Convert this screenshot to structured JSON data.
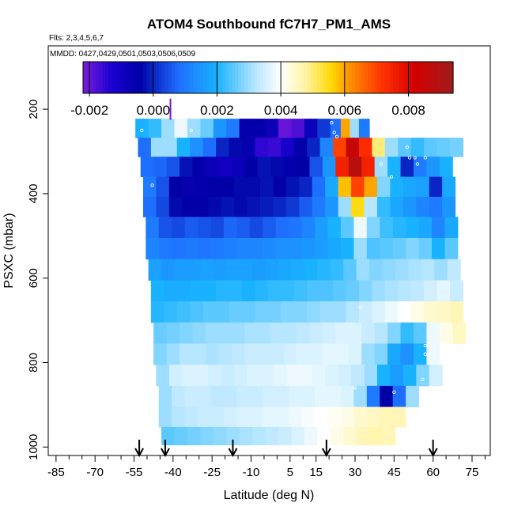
{
  "chart_data": {
    "type": "heatmap",
    "title": "ATOM4 Southbound fC7H7_PM1_AMS",
    "annotation_lines": [
      "Flts: 2,3,4,5,6,7",
      "MMDD: 0427,0429,0501,0503,0506,0509"
    ],
    "xlabel": "Latitude (deg N)",
    "ylabel": "PSXC (mbar)",
    "xlim": [
      -88,
      82
    ],
    "ylim": [
      1020,
      50
    ],
    "x_ticks": [
      -85,
      -70,
      -55,
      -40,
      -25,
      -10,
      5,
      15,
      30,
      45,
      60,
      75
    ],
    "x_tick_labels": [
      "-85",
      "-70",
      "-55",
      "-40",
      "-25",
      "-10",
      "5",
      "15",
      "30",
      "45",
      "60",
      "75"
    ],
    "x_minor_ticks": [
      -80,
      -75,
      -65,
      -60,
      -50,
      -45,
      -35,
      -30,
      -20,
      -15,
      -5,
      0,
      10,
      20,
      25,
      35,
      40,
      50,
      55,
      65,
      70,
      80
    ],
    "y_ticks": [
      200,
      400,
      600,
      800,
      1000
    ],
    "y_tick_labels": [
      "200",
      "400",
      "600",
      "800",
      "1000"
    ],
    "colorbar": {
      "range": [
        -0.0022,
        0.0094
      ],
      "ticks": [
        -0.002,
        0.0,
        0.002,
        0.004,
        0.006,
        0.008
      ],
      "tick_labels": [
        "-0.002",
        "0.000",
        "0.002",
        "0.004",
        "0.006",
        "0.008"
      ],
      "stops": [
        {
          "v": -0.0022,
          "c": "#7a1bd9"
        },
        {
          "v": -0.0013,
          "c": "#1a00d0"
        },
        {
          "v": -0.0004,
          "c": "#0000a6"
        },
        {
          "v": 0.0008,
          "c": "#1f6fff"
        },
        {
          "v": 0.002,
          "c": "#19b2ff"
        },
        {
          "v": 0.0032,
          "c": "#b7e6ff"
        },
        {
          "v": 0.004,
          "c": "#ffffff"
        },
        {
          "v": 0.0048,
          "c": "#fff3a0"
        },
        {
          "v": 0.0056,
          "c": "#ffd800"
        },
        {
          "v": 0.0062,
          "c": "#ff8c00"
        },
        {
          "v": 0.0072,
          "c": "#ff3000"
        },
        {
          "v": 0.0082,
          "c": "#d40000"
        },
        {
          "v": 0.0094,
          "c": "#9e1c1c"
        }
      ]
    },
    "arrow_latitudes": [
      -53,
      -43,
      -17,
      19,
      60
    ],
    "top_marker": {
      "lat": -41,
      "p_top": 175,
      "p_bottom": 225,
      "value": -0.0021
    },
    "rows": [
      {
        "p": 245,
        "lat": [
          -52,
          -47,
          -42,
          -37,
          -32,
          -27,
          -22,
          -17,
          -12,
          -7,
          -2,
          3,
          8,
          13,
          18,
          23,
          26,
          30,
          33
        ],
        "v": [
          0.002,
          0.0022,
          0.003,
          0.0038,
          0.003,
          0.0026,
          0.0015,
          0.001,
          -0.0005,
          -0.0005,
          -0.0008,
          -0.002,
          -0.0018,
          -0.0008,
          0.0002,
          0.0008,
          0.006,
          0.003,
          0.001
        ]
      },
      {
        "p": 290,
        "lat": [
          -51,
          -46,
          -41,
          -36,
          -31,
          -26,
          -21,
          -16,
          -11,
          -6,
          -1,
          4,
          9,
          14,
          19,
          24,
          29,
          34,
          39,
          44,
          49,
          54,
          59,
          64,
          69
        ],
        "v": [
          0.0008,
          0.003,
          0.003,
          0.002,
          0.0014,
          0.0008,
          0.0,
          -0.0003,
          -0.0006,
          -0.0015,
          -0.0016,
          -0.0012,
          -0.0005,
          0.0,
          0.0012,
          0.007,
          0.0085,
          0.0073,
          0.005,
          0.003,
          0.0025,
          0.0022,
          0.0025,
          0.0026,
          0.0027
        ]
      },
      {
        "p": 335,
        "lat": [
          -50,
          -45,
          -40,
          -35,
          -30,
          -25,
          -20,
          -15,
          -10,
          -5,
          0,
          5,
          10,
          15,
          20,
          25,
          30,
          35,
          40,
          45,
          50,
          55,
          60,
          65
        ],
        "v": [
          0.0008,
          0.0007,
          0.0005,
          -0.0002,
          -0.0005,
          -0.0008,
          -0.001,
          -0.0008,
          -0.0004,
          -0.0002,
          -0.0003,
          -0.0005,
          -0.0004,
          0.0005,
          0.0015,
          0.0075,
          0.0088,
          0.0075,
          0.003,
          0.002,
          0.0,
          0.001,
          0.0015,
          0.002
        ]
      },
      {
        "p": 385,
        "lat": [
          -49,
          -44,
          -39,
          -34,
          -29,
          -24,
          -19,
          -14,
          -9,
          -4,
          1,
          6,
          11,
          16,
          21,
          26,
          31,
          36,
          41,
          46,
          51,
          56,
          61,
          66
        ],
        "v": [
          0.001,
          0.0005,
          -0.0004,
          -0.0006,
          -0.0005,
          -0.0004,
          -0.0004,
          -0.0003,
          -0.0003,
          -0.0002,
          -0.0004,
          -0.0002,
          0.0,
          0.0008,
          0.0018,
          0.0058,
          0.007,
          0.006,
          0.0028,
          0.002,
          0.0018,
          0.0017,
          0.0,
          0.0018
        ]
      },
      {
        "p": 430,
        "lat": [
          -49,
          -44,
          -39,
          -34,
          -29,
          -24,
          -19,
          -14,
          -9,
          -4,
          1,
          6,
          11,
          16,
          21,
          26,
          31,
          36,
          41,
          46,
          51,
          56,
          61,
          66
        ],
        "v": [
          0.0008,
          0.0004,
          -0.0003,
          -0.0004,
          -0.0004,
          -0.0003,
          -0.0002,
          -0.0003,
          -0.0002,
          -0.0001,
          0.0,
          0.0002,
          0.0006,
          0.001,
          0.0015,
          0.003,
          0.0055,
          0.0032,
          0.0022,
          0.0018,
          0.0015,
          0.0012,
          0.001,
          0.0015
        ]
      },
      {
        "p": 480,
        "lat": [
          -48,
          -43,
          -38,
          -33,
          -28,
          -23,
          -18,
          -13,
          -8,
          -3,
          2,
          7,
          12,
          17,
          22,
          27,
          32,
          37,
          42,
          47,
          52,
          57,
          62,
          67
        ],
        "v": [
          0.001,
          0.0005,
          0.0004,
          0.0006,
          0.0005,
          0.0004,
          0.0007,
          0.0006,
          0.0004,
          0.0006,
          0.0008,
          0.0009,
          0.0012,
          0.0016,
          0.002,
          0.0025,
          0.0038,
          0.0028,
          0.0023,
          0.0021,
          0.002,
          0.0018,
          0.0012,
          0.0018
        ]
      },
      {
        "p": 530,
        "lat": [
          -48,
          -43,
          -38,
          -33,
          -28,
          -23,
          -18,
          -13,
          -8,
          -3,
          2,
          7,
          12,
          17,
          22,
          27,
          32,
          37,
          42,
          47,
          52,
          57,
          62,
          67
        ],
        "v": [
          0.0012,
          0.001,
          0.0009,
          0.001,
          0.0009,
          0.001,
          0.0011,
          0.0012,
          0.0012,
          0.0013,
          0.0014,
          0.0014,
          0.0015,
          0.0016,
          0.0018,
          0.002,
          0.003,
          0.0024,
          0.0025,
          0.0026,
          0.0028,
          0.0026,
          0.002,
          0.0025
        ]
      },
      {
        "p": 580,
        "lat": [
          -47,
          -42,
          -37,
          -32,
          -27,
          -22,
          -17,
          -12,
          -7,
          -2,
          3,
          8,
          13,
          18,
          23,
          28,
          33,
          38,
          43,
          48,
          53,
          58,
          63,
          68
        ],
        "v": [
          0.0017,
          0.0015,
          0.0016,
          0.0016,
          0.0017,
          0.0016,
          0.0017,
          0.0017,
          0.0016,
          0.0017,
          0.0018,
          0.0019,
          0.002,
          0.0021,
          0.0022,
          0.0025,
          0.003,
          0.0028,
          0.0029,
          0.003,
          0.0031,
          0.0032,
          0.003,
          0.0033
        ]
      },
      {
        "p": 630,
        "lat": [
          -46,
          -41,
          -36,
          -31,
          -26,
          -21,
          -16,
          -11,
          -6,
          -1,
          4,
          9,
          14,
          19,
          24,
          29,
          34,
          39,
          44,
          49,
          54,
          59,
          64,
          69
        ],
        "v": [
          0.002,
          0.0019,
          0.0019,
          0.002,
          0.002,
          0.0021,
          0.0021,
          0.002,
          0.0021,
          0.0022,
          0.0022,
          0.0023,
          0.0024,
          0.0024,
          0.0025,
          0.0026,
          0.0028,
          0.003,
          0.0031,
          0.0032,
          0.0033,
          0.0035,
          0.0037,
          0.0034
        ]
      },
      {
        "p": 680,
        "lat": [
          -46,
          -41,
          -36,
          -31,
          -26,
          -21,
          -16,
          -11,
          -6,
          -1,
          4,
          9,
          14,
          19,
          24,
          29,
          34,
          39,
          44,
          49,
          54,
          59,
          64,
          69
        ],
        "v": [
          0.0021,
          0.0022,
          0.0023,
          0.0024,
          0.0025,
          0.0025,
          0.0026,
          0.0026,
          0.0027,
          0.0027,
          0.0028,
          0.0028,
          0.0029,
          0.003,
          0.003,
          0.0032,
          0.0034,
          0.0036,
          0.0038,
          0.004,
          0.0042,
          0.0044,
          0.0045,
          0.0046
        ]
      },
      {
        "p": 730,
        "lat": [
          -45,
          -40,
          -35,
          -30,
          -25,
          -20,
          -15,
          -10,
          -5,
          0,
          5,
          10,
          15,
          20,
          25,
          30,
          35,
          40,
          45,
          50,
          55,
          60,
          65,
          70
        ],
        "v": [
          0.0026,
          0.0027,
          0.0028,
          0.0029,
          0.003,
          0.003,
          0.003,
          0.0031,
          0.0031,
          0.0032,
          0.0032,
          0.0033,
          0.0034,
          0.0035,
          0.0036,
          0.0036,
          0.0034,
          0.0032,
          0.0028,
          0.0022,
          0.0025,
          0.0038,
          0.0042,
          0.0045
        ]
      },
      {
        "p": 780,
        "lat": [
          -45,
          -40,
          -35,
          -30,
          -25,
          -20,
          -15,
          -10,
          -5,
          0,
          5,
          10,
          15,
          20,
          25,
          30,
          35,
          40,
          45,
          50,
          55,
          60,
          65
        ],
        "v": [
          0.0028,
          0.003,
          0.0032,
          0.0032,
          0.0031,
          0.0032,
          0.0033,
          0.0034,
          0.0034,
          0.0034,
          0.0035,
          0.0036,
          0.0036,
          0.0037,
          0.0037,
          0.0036,
          0.003,
          0.0028,
          0.0018,
          0.0014,
          0.002,
          0.0038,
          0.004
        ]
      },
      {
        "p": 830,
        "lat": [
          -44,
          -39,
          -34,
          -29,
          -24,
          -19,
          -14,
          -9,
          -4,
          1,
          6,
          11,
          16,
          21,
          26,
          31,
          36,
          41,
          46,
          51,
          56,
          61
        ],
        "v": [
          0.003,
          0.0035,
          0.0036,
          0.0036,
          0.0035,
          0.0034,
          0.0035,
          0.0036,
          0.0036,
          0.0037,
          0.0038,
          0.0038,
          0.0037,
          0.0036,
          0.0035,
          0.0033,
          0.003,
          0.002,
          0.0016,
          0.002,
          0.0028,
          0.0035
        ]
      },
      {
        "p": 880,
        "lat": [
          -43,
          -38,
          -33,
          -28,
          -23,
          -18,
          -13,
          -8,
          -3,
          2,
          7,
          12,
          17,
          22,
          27,
          32,
          37,
          42,
          47,
          52
        ],
        "v": [
          0.003,
          0.0033,
          0.0034,
          0.0034,
          0.0033,
          0.0033,
          0.0034,
          0.0034,
          0.0035,
          0.0035,
          0.0036,
          0.0036,
          0.0037,
          0.0037,
          0.0036,
          0.003,
          0.001,
          -0.0004,
          0.0008,
          0.003
        ]
      },
      {
        "p": 930,
        "lat": [
          -43,
          -38,
          -33,
          -28,
          -23,
          -18,
          -13,
          -8,
          -3,
          2,
          7,
          12,
          17,
          22,
          27,
          32,
          37,
          42,
          47
        ],
        "v": [
          0.003,
          0.0032,
          0.0033,
          0.0034,
          0.0034,
          0.0035,
          0.0036,
          0.0036,
          0.0037,
          0.0037,
          0.0038,
          0.0039,
          0.004,
          0.0041,
          0.0042,
          0.0044,
          0.0045,
          0.0046,
          0.0046
        ]
      },
      {
        "p": 975,
        "lat": [
          -42,
          -37,
          -32,
          -27,
          -22,
          -17,
          -12,
          -7,
          -2,
          3,
          8,
          13,
          18,
          23,
          28,
          33,
          38,
          43
        ],
        "v": [
          0.0025,
          0.0026,
          0.0027,
          0.0028,
          0.0029,
          0.003,
          0.0031,
          0.0032,
          0.0033,
          0.0034,
          0.0036,
          0.0038,
          0.004,
          0.0042,
          0.0044,
          0.0046,
          0.0047,
          0.0046
        ]
      }
    ],
    "open_circles": [
      [
        -52,
        250
      ],
      [
        -33,
        250
      ],
      [
        -48,
        380
      ],
      [
        21,
        232
      ],
      [
        22,
        255
      ],
      [
        23,
        265
      ],
      [
        40,
        330
      ],
      [
        44,
        360
      ],
      [
        51,
        315
      ],
      [
        53,
        315
      ],
      [
        57,
        315
      ],
      [
        50,
        290
      ],
      [
        54,
        330
      ],
      [
        32,
        670
      ],
      [
        57,
        760
      ],
      [
        57,
        780
      ],
      [
        56,
        840
      ],
      [
        45,
        870
      ],
      [
        30,
        860
      ],
      [
        -45,
        995
      ]
    ]
  }
}
